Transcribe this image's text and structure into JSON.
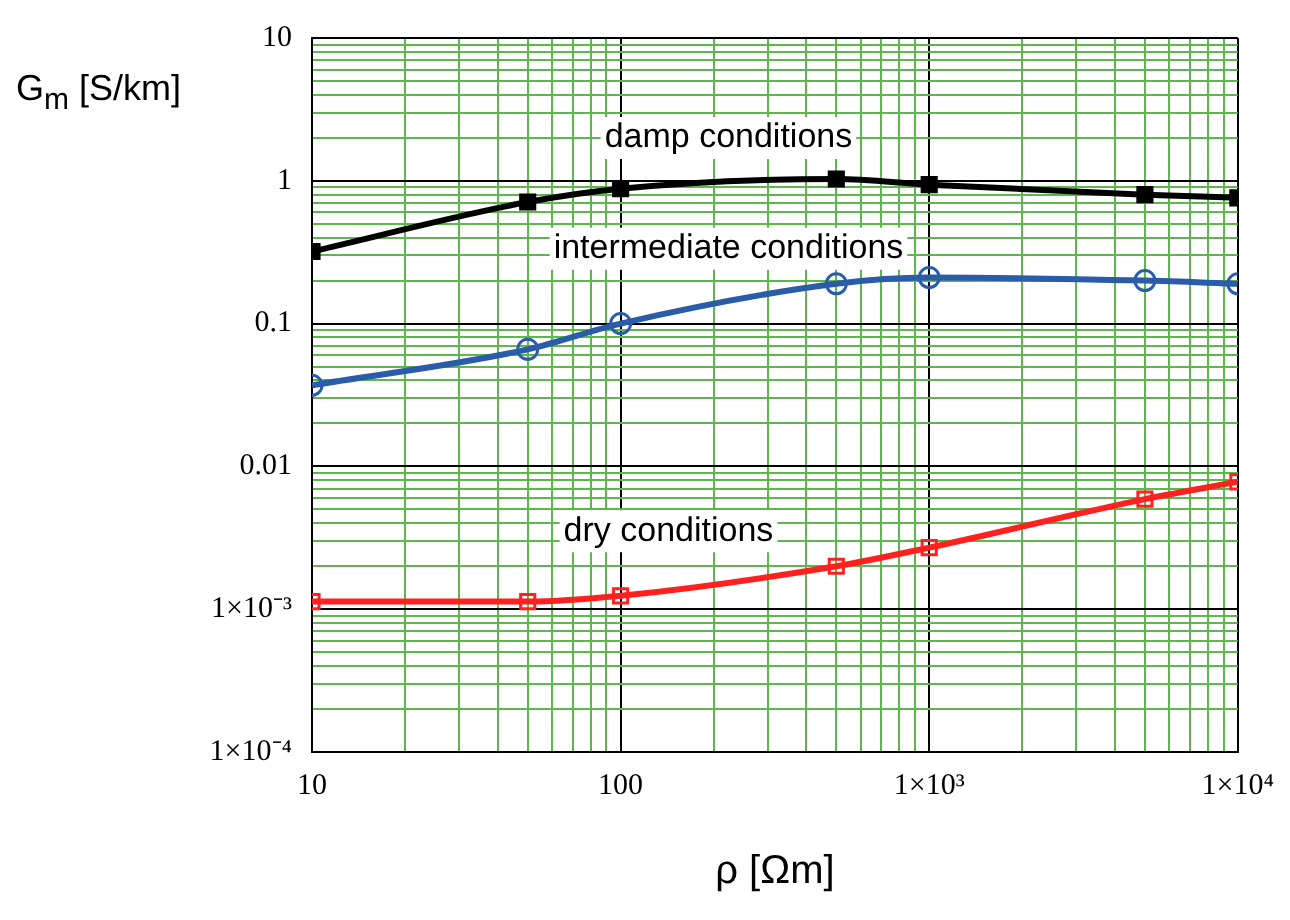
{
  "chart_data": {
    "type": "line",
    "xlabel": "ρ [Ωm]",
    "ylabel": "G$_{m}$ [S/km]",
    "log": "xy",
    "grid": true,
    "line_style": "solid",
    "x": [
      10,
      50,
      100,
      500,
      1000,
      5000,
      10000
    ],
    "series": [
      {
        "name": "damp conditions",
        "color": "#000000",
        "marker": "square",
        "values": [
          0.32,
          0.71,
          0.88,
          1.03,
          0.94,
          0.8,
          0.76
        ]
      },
      {
        "name": "intermediate conditions",
        "color": "#2a5caa",
        "marker": "circle",
        "values": [
          0.037,
          0.066,
          0.1,
          0.19,
          0.21,
          0.2,
          0.19
        ]
      },
      {
        "name": "dry conditions",
        "color": "#ff2020",
        "marker": "square",
        "values": [
          0.00113,
          0.00113,
          0.00124,
          0.002,
          0.0027,
          0.0059,
          0.0078
        ]
      }
    ],
    "xlim": [
      10,
      10000
    ],
    "xticks": [
      10,
      {
        "value": 20,
        "label": null
      },
      {
        "value": 30,
        "label": null
      },
      {
        "value": 40,
        "label": null
      },
      {
        "value": 50,
        "label": null
      },
      {
        "value": 60,
        "label": null
      },
      {
        "value": 70,
        "label": null
      },
      {
        "value": 80,
        "label": null
      },
      {
        "value": 90,
        "label": null
      },
      100,
      {
        "value": 200,
        "label": null
      },
      {
        "value": 300,
        "label": null
      },
      {
        "value": 400,
        "label": null
      },
      {
        "value": 500,
        "label": null
      },
      {
        "value": 600,
        "label": null
      },
      {
        "value": 700,
        "label": null
      },
      {
        "value": 800,
        "label": null
      },
      {
        "value": 900,
        "label": null
      },
      {
        "value": 1000,
        "label": "1×10³"
      },
      {
        "value": 2000,
        "label": null
      },
      {
        "value": 3000,
        "label": null
      },
      {
        "value": 4000,
        "label": null
      },
      {
        "value": 5000,
        "label": null
      },
      {
        "value": 6000,
        "label": null
      },
      {
        "value": 7000,
        "label": null
      },
      {
        "value": 8000,
        "label": null
      },
      {
        "value": 9000,
        "label": null
      },
      {
        "value": 10000,
        "label": "1×10⁴"
      }
    ],
    "ylim": [
      0.0001,
      10
    ],
    "yticks": [
      {
        "value": 0.0001,
        "label": "1×10⁻⁴"
      },
      {
        "value": 0.0002,
        "label": null
      },
      {
        "value": 0.0003,
        "label": null
      },
      {
        "value": 0.0004,
        "label": null
      },
      {
        "value": 0.0005,
        "label": null
      },
      {
        "value": 0.0006,
        "label": null
      },
      {
        "value": 0.0007,
        "label": null
      },
      {
        "value": 0.0008,
        "label": null
      },
      {
        "value": 0.0009,
        "label": null
      },
      {
        "value": 0.001,
        "label": "1×10⁻³"
      },
      {
        "value": 0.002,
        "label": null
      },
      {
        "value": 0.003,
        "label": null
      },
      {
        "value": 0.004,
        "label": null
      },
      {
        "value": 0.005,
        "label": null
      },
      {
        "value": 0.006,
        "label": null
      },
      {
        "value": 0.007,
        "label": null
      },
      {
        "value": 0.008,
        "label": null
      },
      {
        "value": 0.009,
        "label": null
      },
      0.01,
      {
        "value": 0.02,
        "label": null
      },
      {
        "value": 0.03,
        "label": null
      },
      {
        "value": 0.04,
        "label": null
      },
      {
        "value": 0.05,
        "label": null
      },
      {
        "value": 0.06,
        "label": null
      },
      {
        "value": 0.07,
        "label": null
      },
      {
        "value": 0.08,
        "label": null
      },
      {
        "value": 0.09,
        "label": null
      },
      0.1,
      {
        "value": 0.2,
        "label": null
      },
      {
        "value": 0.3,
        "label": null
      },
      {
        "value": 0.4,
        "label": null
      },
      {
        "value": 0.5,
        "label": null
      },
      {
        "value": 0.6,
        "label": null
      },
      {
        "value": 0.7,
        "label": null
      },
      {
        "value": 0.8,
        "label": null
      },
      {
        "value": 0.9,
        "label": null
      },
      1,
      {
        "value": 2,
        "label": null
      },
      {
        "value": 3,
        "label": null
      },
      {
        "value": 4,
        "label": null
      },
      {
        "value": 5,
        "label": null
      },
      {
        "value": 6,
        "label": null
      },
      {
        "value": 7,
        "label": null
      },
      {
        "value": 8,
        "label": null
      },
      {
        "value": 9,
        "label": null
      },
      10
    ]
  }
}
